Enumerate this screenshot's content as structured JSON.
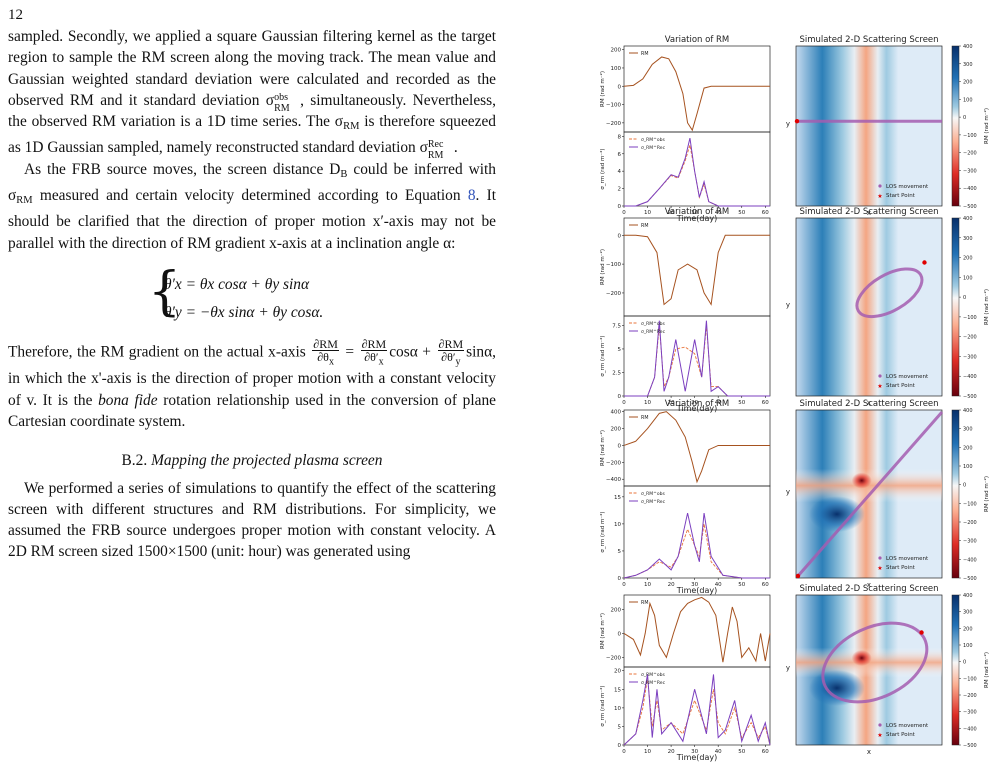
{
  "page_number": "12",
  "text": {
    "p1": "sampled. Secondly, we applied a square Gaussian filtering kernel as the target region to sample the RM screen along the moving track. The mean value and Gaussian weighted standard deviation were calculated and recorded as the observed RM and it standard deviation σ",
    "p1_b": ", simultaneously. Nevertheless, the observed RM variation is a 1D time series. The σ",
    "p1_c": " is therefore squeezed as 1D Gaussian sampled, namely reconstructed standard deviation σ",
    "p2_a": "As the FRB source moves, the screen distance D",
    "p2_b": " could be inferred with σ",
    "p2_c": " measured and certain velocity determined according to Equation ",
    "p2_eq": "8",
    "p2_d": ". It should be clarified that the direction of proper motion x′-axis may not be parallel with the direction of RM gradient x-axis at a inclination angle α:",
    "eq1": "θ′x = θx cosα + θy sinα",
    "eq2": "θ′y = −θx sinα + θy cosα.",
    "p3_a": "Therefore, the RM gradient on the actual x-axis",
    "p3_b": "cosα +",
    "p3_c": "sinα, in which the x'-axis is the direction of proper motion with a constant velocity of v. It is the",
    "p3_d": "bona fide",
    "p3_e": "rotation relationship used in the conversion of plane Cartesian coordinate system.",
    "section": "B.2.",
    "section_title": "Mapping the projected plasma screen",
    "p4": "We performed a series of simulations to quantify the effect of the scattering screen with different structures and RM distributions. For simplicity, we assumed the FRB source undergoes proper motion with constant velocity. A 2D RM screen sized 1500×1500 (unit: hour) was generated using"
  },
  "sub_labels": {
    "rm": "RM",
    "obs": "obs",
    "rec": "Rec",
    "b": "B"
  },
  "figure": {
    "rm_title": "Variation of RM",
    "screen_title": "Simulated 2-D Scattering Screen",
    "xlabel": "Time(day)",
    "ylabel_rm": "RM (rad m⁻²)",
    "ylabel_sigma": "σ_rm (rad m⁻²)",
    "screen_xlabel": "x",
    "screen_ylabel": "y",
    "colorbar_label": "RM (rad m⁻²)",
    "colorbar_ticks": [
      "400",
      "300",
      "200",
      "100",
      "0",
      "−100",
      "−200",
      "−300",
      "−400",
      "−500"
    ],
    "legend_rm": "RM",
    "legend_obs": "σ_RM^obs",
    "legend_rec": "σ_RM^Rec",
    "legend_los": "LOS movement",
    "legend_start": "Start Point",
    "time_ticks": [
      "0",
      "10",
      "20",
      "30",
      "40",
      "50",
      "60"
    ]
  },
  "chart_data": [
    {
      "type": "line",
      "panel": 1,
      "title": "Variation of RM",
      "xlim": [
        0,
        62
      ],
      "ylim": [
        -250,
        220
      ],
      "yticks": [
        200,
        100,
        0,
        -100,
        -200
      ],
      "series": [
        {
          "name": "RM",
          "x": [
            0,
            4,
            8,
            12,
            16,
            19,
            22,
            25,
            27,
            29,
            31,
            34,
            37,
            40,
            45,
            55,
            62
          ],
          "y": [
            0,
            5,
            40,
            120,
            160,
            150,
            80,
            -40,
            -200,
            -240,
            -150,
            -10,
            0,
            0,
            0,
            0,
            0
          ]
        }
      ],
      "sigma_ylim": [
        0,
        8.5
      ],
      "sigma_yticks": [
        0,
        2,
        4,
        6,
        8
      ],
      "sigma_series": [
        {
          "name": "σ_RM^obs",
          "x": [
            0,
            5,
            10,
            15,
            20,
            23,
            26,
            28,
            30,
            32,
            34,
            36,
            40,
            50,
            62
          ],
          "y": [
            0,
            0,
            0.5,
            2,
            3.5,
            3.2,
            5.2,
            7,
            4,
            1,
            2.5,
            0.5,
            0,
            0,
            0
          ]
        },
        {
          "name": "σ_RM^Rec",
          "x": [
            0,
            5,
            10,
            15,
            20,
            23,
            26,
            28,
            30,
            32,
            34,
            36,
            40,
            50,
            62
          ],
          "y": [
            0,
            0,
            0.5,
            2,
            3.6,
            3.3,
            5.5,
            7.8,
            4,
            1,
            2.8,
            0.5,
            0,
            0,
            0
          ]
        }
      ]
    },
    {
      "type": "line",
      "panel": 2,
      "title": "Variation of RM",
      "xlim": [
        0,
        62
      ],
      "ylim": [
        -280,
        60
      ],
      "yticks": [
        0,
        -100,
        -200
      ],
      "series": [
        {
          "name": "RM",
          "x": [
            0,
            5,
            10,
            14,
            17,
            20,
            23,
            27,
            31,
            34,
            37,
            40,
            43,
            50,
            62
          ],
          "y": [
            0,
            0,
            -5,
            -60,
            -240,
            -220,
            -120,
            -100,
            -120,
            -200,
            -240,
            -60,
            0,
            0,
            0
          ]
        }
      ],
      "sigma_ylim": [
        0,
        8.5
      ],
      "sigma_yticks": [
        0,
        2.5,
        5,
        7.5
      ],
      "sigma_series": [
        {
          "name": "σ_RM^obs",
          "x": [
            0,
            10,
            13,
            15,
            17,
            19,
            22,
            26,
            30,
            33,
            35,
            37,
            40,
            44,
            62
          ],
          "y": [
            0,
            0,
            2,
            7.5,
            1,
            2,
            5,
            5.2,
            4.5,
            2,
            7.5,
            1,
            1,
            0,
            0
          ]
        },
        {
          "name": "σ_RM^Rec",
          "x": [
            0,
            10,
            13,
            15,
            17,
            19,
            22,
            26,
            30,
            33,
            35,
            37,
            40,
            44,
            62
          ],
          "y": [
            0,
            0,
            2,
            8,
            0.5,
            2,
            6,
            0.5,
            6,
            2,
            8,
            0.5,
            1,
            0,
            0
          ]
        }
      ]
    },
    {
      "type": "line",
      "panel": 3,
      "title": "Variation of RM",
      "xlim": [
        0,
        62
      ],
      "ylim": [
        -480,
        420
      ],
      "yticks": [
        400,
        200,
        0,
        -200,
        -400
      ],
      "series": [
        {
          "name": "RM",
          "x": [
            0,
            5,
            10,
            15,
            18,
            22,
            26,
            29,
            31,
            33,
            36,
            40,
            45,
            55,
            62
          ],
          "y": [
            0,
            50,
            200,
            380,
            400,
            300,
            100,
            -200,
            -430,
            -300,
            -50,
            0,
            0,
            0,
            0
          ]
        }
      ],
      "sigma_ylim": [
        0,
        17
      ],
      "sigma_yticks": [
        0,
        5,
        10,
        15
      ],
      "sigma_series": [
        {
          "name": "σ_RM^obs",
          "x": [
            0,
            5,
            10,
            15,
            20,
            23,
            27,
            30,
            32,
            34,
            37,
            42,
            50,
            62
          ],
          "y": [
            0,
            0.5,
            1.5,
            3,
            2,
            4,
            9,
            6,
            4,
            10,
            3,
            0.5,
            0,
            0
          ]
        },
        {
          "name": "σ_RM^Rec",
          "x": [
            0,
            5,
            10,
            15,
            20,
            23,
            27,
            30,
            32,
            34,
            37,
            42,
            50,
            62
          ],
          "y": [
            0,
            0.5,
            1.5,
            3.5,
            1.5,
            4,
            12,
            6,
            3,
            12,
            4,
            0.5,
            0,
            0
          ]
        }
      ]
    },
    {
      "type": "line",
      "panel": 4,
      "title": "",
      "xlim": [
        0,
        62
      ],
      "ylim": [
        -280,
        320
      ],
      "yticks": [
        200,
        0,
        -200
      ],
      "series": [
        {
          "name": "RM",
          "x": [
            0,
            4,
            7,
            9,
            11,
            13,
            15,
            18,
            21,
            24,
            27,
            30,
            33,
            36,
            39,
            42,
            44,
            46,
            48,
            50,
            53,
            56,
            58,
            60,
            62
          ],
          "y": [
            0,
            -50,
            -180,
            0,
            250,
            150,
            -100,
            -200,
            0,
            180,
            250,
            280,
            300,
            260,
            150,
            -240,
            0,
            220,
            100,
            -200,
            -120,
            -230,
            0,
            -230,
            0
          ]
        }
      ],
      "sigma_ylim": [
        0,
        21
      ],
      "sigma_yticks": [
        0,
        5,
        10,
        15,
        20
      ],
      "sigma_series": [
        {
          "name": "σ_RM^obs",
          "x": [
            0,
            5,
            8,
            10,
            12,
            14,
            16,
            20,
            25,
            30,
            35,
            38,
            40,
            43,
            47,
            50,
            54,
            57,
            60,
            62
          ],
          "y": [
            0,
            3,
            10,
            18,
            5,
            12,
            4,
            6,
            3,
            12,
            4,
            15,
            6,
            3,
            10,
            2,
            6,
            2,
            5,
            0
          ]
        },
        {
          "name": "σ_RM^Rec",
          "x": [
            0,
            5,
            8,
            10,
            12,
            14,
            16,
            20,
            25,
            30,
            35,
            38,
            40,
            43,
            47,
            50,
            54,
            57,
            60,
            62
          ],
          "y": [
            0,
            3,
            12,
            19,
            2,
            15,
            3,
            6,
            1,
            15,
            3,
            19,
            2,
            4,
            12,
            1,
            8,
            1,
            6,
            0
          ]
        }
      ]
    }
  ]
}
